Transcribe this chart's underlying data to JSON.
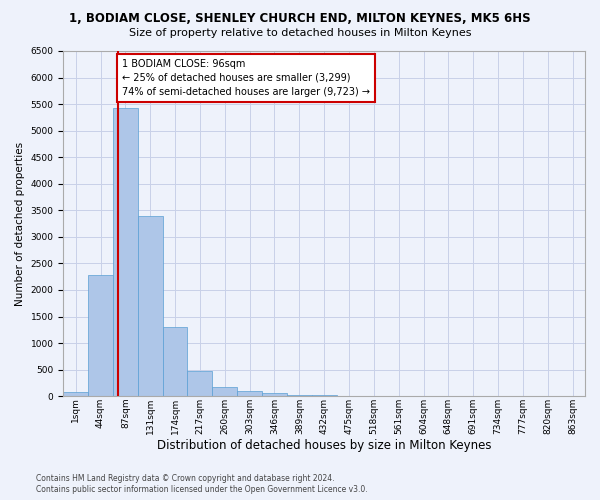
{
  "title": "1, BODIAM CLOSE, SHENLEY CHURCH END, MILTON KEYNES, MK5 6HS",
  "subtitle": "Size of property relative to detached houses in Milton Keynes",
  "xlabel": "Distribution of detached houses by size in Milton Keynes",
  "ylabel": "Number of detached properties",
  "footer_line1": "Contains HM Land Registry data © Crown copyright and database right 2024.",
  "footer_line2": "Contains public sector information licensed under the Open Government Licence v3.0.",
  "bar_labels": [
    "1sqm",
    "44sqm",
    "87sqm",
    "131sqm",
    "174sqm",
    "217sqm",
    "260sqm",
    "303sqm",
    "346sqm",
    "389sqm",
    "432sqm",
    "475sqm",
    "518sqm",
    "561sqm",
    "604sqm",
    "648sqm",
    "691sqm",
    "734sqm",
    "777sqm",
    "820sqm",
    "863sqm"
  ],
  "bar_values": [
    80,
    2280,
    5430,
    3390,
    1310,
    480,
    165,
    90,
    55,
    30,
    20,
    10,
    5,
    2,
    1,
    0,
    0,
    0,
    0,
    0,
    0
  ],
  "bar_color": "#aec6e8",
  "bar_edge_color": "#5a9fd4",
  "ylim": [
    0,
    6500
  ],
  "yticks": [
    0,
    500,
    1000,
    1500,
    2000,
    2500,
    3000,
    3500,
    4000,
    4500,
    5000,
    5500,
    6000,
    6500
  ],
  "property_label": "1 BODIAM CLOSE: 96sqm",
  "annotation_line1": "← 25% of detached houses are smaller (3,299)",
  "annotation_line2": "74% of semi-detached houses are larger (9,723) →",
  "vline_color": "#cc0000",
  "annotation_box_color": "#cc0000",
  "background_color": "#eef2fb",
  "grid_color": "#c8d0e8",
  "title_fontsize": 8.5,
  "subtitle_fontsize": 8.0,
  "xlabel_fontsize": 8.5,
  "ylabel_fontsize": 7.5,
  "tick_fontsize": 6.5,
  "annot_fontsize": 7.0,
  "footer_fontsize": 5.5
}
